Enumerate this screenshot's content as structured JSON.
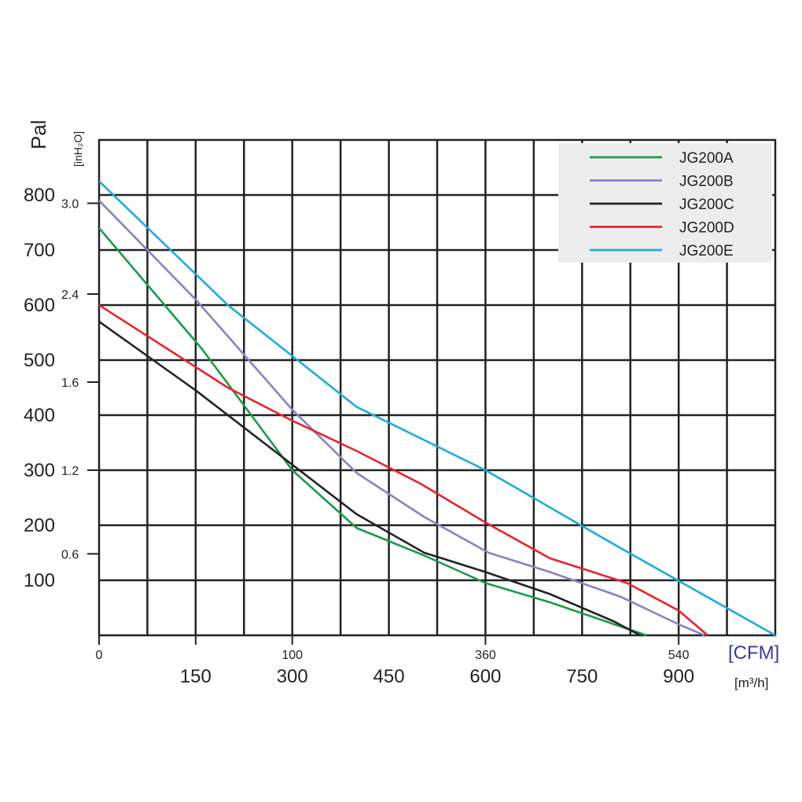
{
  "chart_data": {
    "type": "line",
    "x_unit_primary": "[CFM]",
    "x_unit_secondary": "[m³/h]",
    "y_unit_primary": "Pal",
    "y_unit_secondary": "[inH₂O]",
    "xlim_m3h": [
      0,
      1050
    ],
    "ylim_pa": [
      0,
      900
    ],
    "grid": true,
    "legend_position": "top-right",
    "x_ticks_cfm": [
      "0",
      "100",
      "360",
      "540"
    ],
    "x_ticks_cfm_values_m3h": [
      0,
      300,
      600,
      900
    ],
    "x_ticks_m3h": [
      "150",
      "300",
      "450",
      "600",
      "750",
      "900"
    ],
    "x_ticks_m3h_values": [
      150,
      300,
      450,
      600,
      750,
      900
    ],
    "y_ticks_pa": [
      "100",
      "200",
      "300",
      "400",
      "500",
      "600",
      "700",
      "800"
    ],
    "y_ticks_pa_values": [
      100,
      200,
      300,
      400,
      500,
      600,
      700,
      800
    ],
    "y_ticks_inh2o": [
      "0.6",
      "1.2",
      "1.6",
      "2.4",
      "3.0"
    ],
    "y_ticks_inh2o_values_pa": [
      148,
      300,
      460,
      620,
      785
    ],
    "series": [
      {
        "name": "JG200A",
        "color": "#1a9a4a",
        "x": [
          0,
          160,
          300,
          400,
          505,
          600,
          700,
          800,
          850
        ],
        "y": [
          740,
          520,
          300,
          195,
          145,
          95,
          60,
          20,
          0
        ]
      },
      {
        "name": "JG200B",
        "color": "#8c7fc7",
        "x": [
          0,
          150,
          300,
          400,
          505,
          605,
          700,
          810,
          900,
          940
        ],
        "y": [
          790,
          610,
          410,
          295,
          215,
          150,
          115,
          70,
          20,
          0
        ]
      },
      {
        "name": "JG200C",
        "color": "#222222",
        "x": [
          0,
          150,
          300,
          400,
          505,
          600,
          700,
          800,
          840
        ],
        "y": [
          570,
          445,
          310,
          220,
          150,
          115,
          75,
          25,
          0
        ]
      },
      {
        "name": "JG200D",
        "color": "#e8232b",
        "x": [
          0,
          200,
          300,
          400,
          500,
          600,
          700,
          820,
          900,
          945
        ],
        "y": [
          600,
          450,
          390,
          335,
          275,
          205,
          140,
          95,
          45,
          0
        ]
      },
      {
        "name": "JG200E",
        "color": "#1ea9e1",
        "x": [
          0,
          200,
          400,
          600,
          800,
          1050
        ],
        "y": [
          825,
          600,
          415,
          300,
          165,
          0
        ]
      }
    ]
  }
}
